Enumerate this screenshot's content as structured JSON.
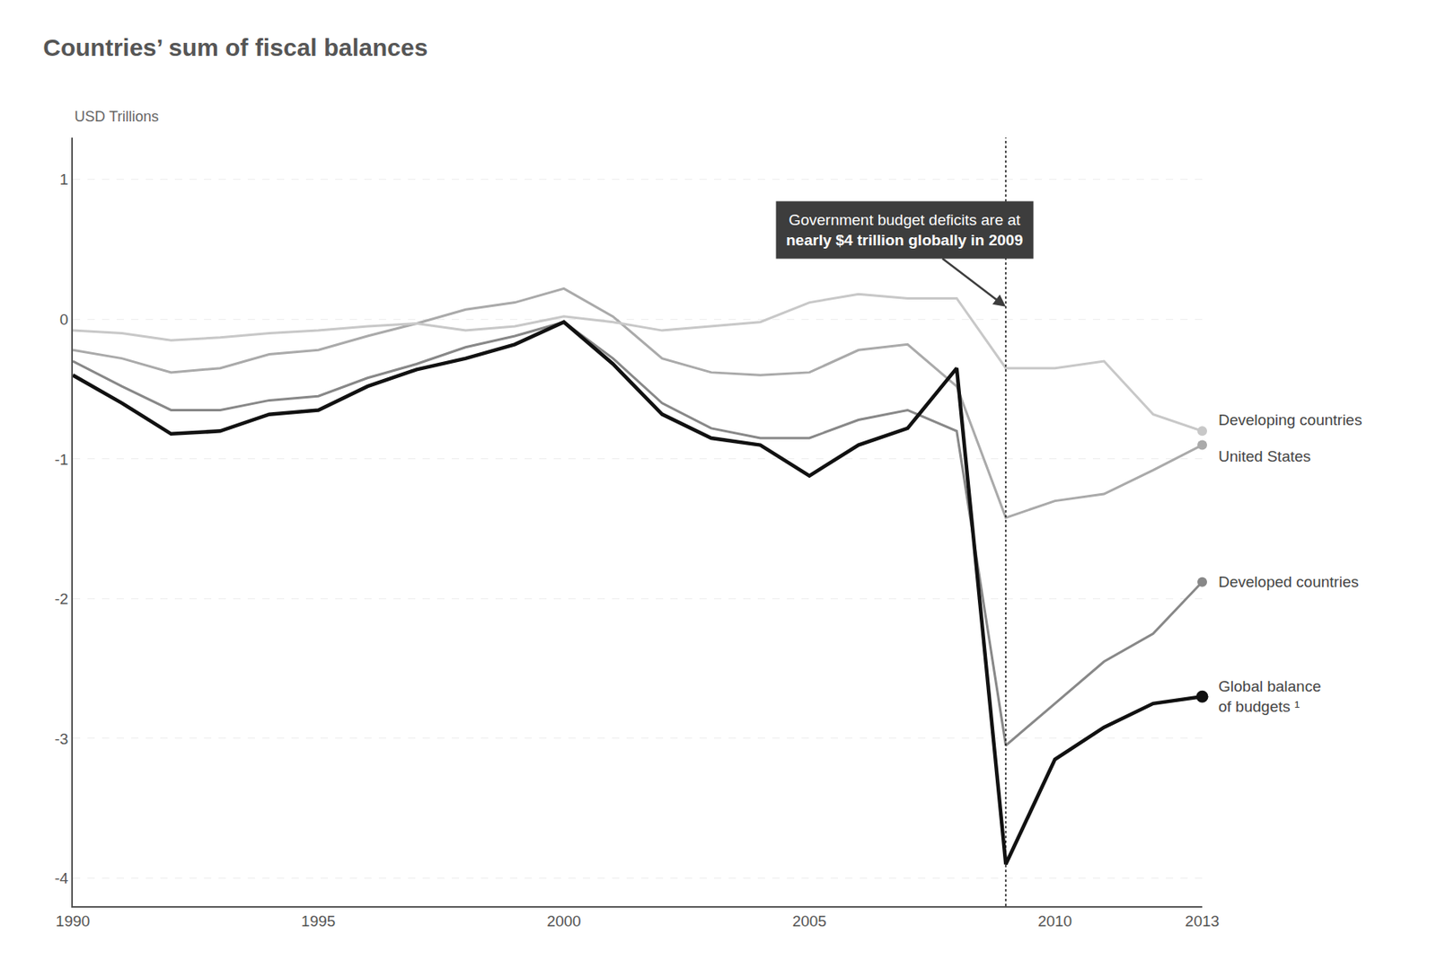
{
  "chart_data": {
    "type": "line",
    "title": "Countries’ sum of fiscal balances",
    "y_label": "USD Trillions",
    "x": [
      1990,
      1991,
      1992,
      1993,
      1994,
      1995,
      1996,
      1997,
      1998,
      1999,
      2000,
      2001,
      2002,
      2003,
      2004,
      2005,
      2006,
      2007,
      2008,
      2009,
      2010,
      2011,
      2012,
      2013
    ],
    "series": [
      {
        "name": "United States",
        "color": "#aaaaaa",
        "values": [
          -0.22,
          -0.28,
          -0.38,
          -0.35,
          -0.25,
          -0.22,
          -0.12,
          -0.03,
          0.07,
          0.12,
          0.22,
          0.02,
          -0.28,
          -0.38,
          -0.4,
          -0.38,
          -0.22,
          -0.18,
          -0.48,
          -1.42,
          -1.3,
          -1.25,
          -1.08,
          -0.9
        ]
      },
      {
        "name": "Developing countries",
        "color": "#c8c8c8",
        "values": [
          -0.08,
          -0.1,
          -0.15,
          -0.13,
          -0.1,
          -0.08,
          -0.05,
          -0.03,
          -0.08,
          -0.05,
          0.02,
          -0.02,
          -0.08,
          -0.05,
          -0.02,
          0.12,
          0.18,
          0.15,
          0.15,
          -0.35,
          -0.35,
          -0.3,
          -0.68,
          -0.8
        ]
      },
      {
        "name": "Developed countries",
        "color": "#888888",
        "values": [
          -0.3,
          -0.48,
          -0.65,
          -0.65,
          -0.58,
          -0.55,
          -0.42,
          -0.32,
          -0.2,
          -0.12,
          -0.02,
          -0.28,
          -0.6,
          -0.78,
          -0.85,
          -0.85,
          -0.72,
          -0.65,
          -0.8,
          -3.05,
          -2.75,
          -2.45,
          -2.25,
          -1.88
        ]
      },
      {
        "name": "Global balance\nof budgets ¹",
        "color": "#111111",
        "values": [
          -0.4,
          -0.6,
          -0.82,
          -0.8,
          -0.68,
          -0.65,
          -0.48,
          -0.36,
          -0.28,
          -0.18,
          -0.02,
          -0.32,
          -0.68,
          -0.85,
          -0.9,
          -1.12,
          -0.9,
          -0.78,
          -0.35,
          -3.9,
          -3.15,
          -2.92,
          -2.75,
          -2.7
        ]
      }
    ],
    "xlim": [
      1990,
      2013
    ],
    "ylim": [
      -4.2,
      1.3
    ],
    "xticks": [
      1990,
      1995,
      2000,
      2005,
      2010,
      2013
    ],
    "yticks": [
      -4,
      -3,
      -2,
      -1,
      0,
      1
    ],
    "grid": true,
    "vline": 2009,
    "annotation": [
      "Government budget deficits are at",
      "nearly $4 trillion globally in 2009"
    ]
  }
}
